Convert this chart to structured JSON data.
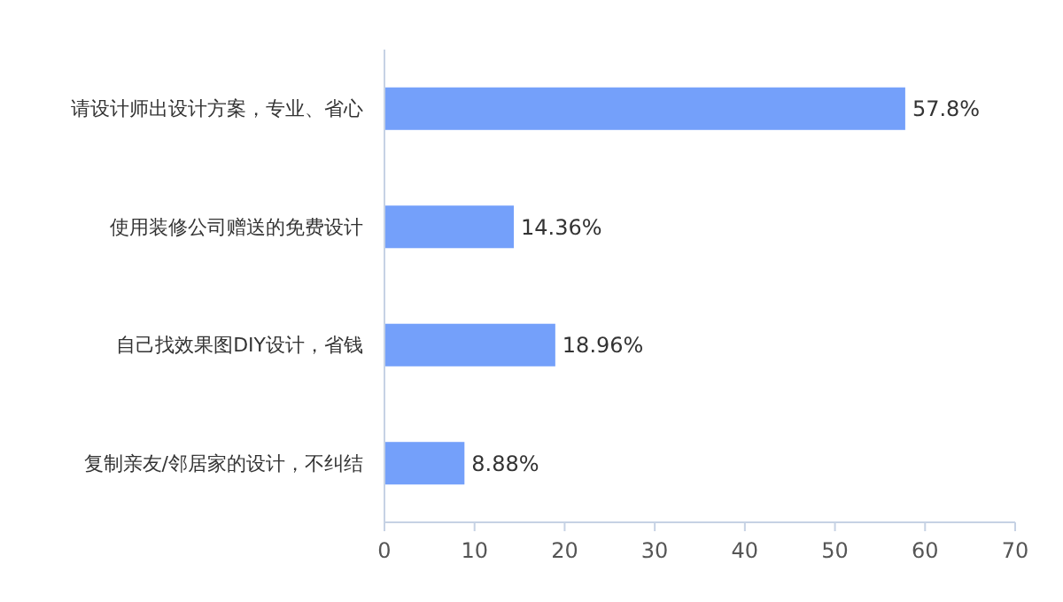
{
  "chart_data": {
    "type": "bar",
    "orientation": "horizontal",
    "categories": [
      "请设计师出设计方案，专业、省心",
      "使用装修公司赠送的免费设计",
      "自己找效果图DIY设计，省钱",
      "复制亲友/邻居家的设计，不纠结"
    ],
    "values": [
      57.8,
      14.36,
      18.96,
      8.88
    ],
    "value_labels": [
      "57.8%",
      "14.36%",
      "18.96%",
      "8.88%"
    ],
    "color": "#74a0fa",
    "xlim": [
      0,
      70
    ],
    "xticks": [
      0,
      10,
      20,
      30,
      40,
      50,
      60,
      70
    ],
    "grid": false
  }
}
